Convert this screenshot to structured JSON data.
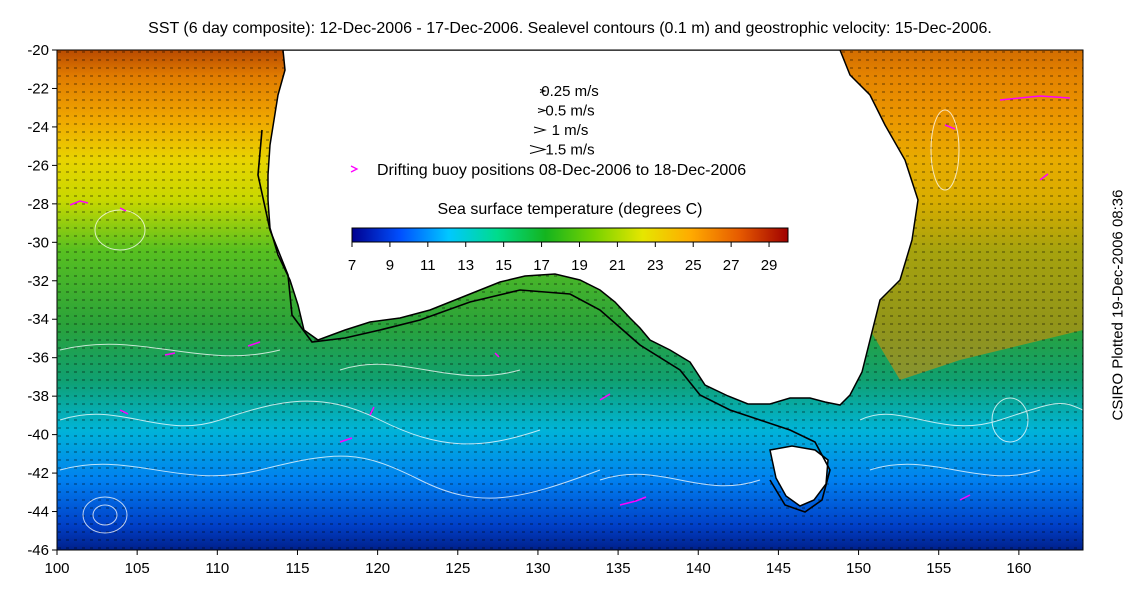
{
  "title": "SST (6 day composite): 12-Dec-2006 - 17-Dec-2006. Sealevel contours (0.1 m) and geostrophic velocity: 15-Dec-2006.",
  "side_note": "CSIRO Plotted 19-Dec-2006 08:36",
  "axes": {
    "x_range": [
      100,
      164
    ],
    "y_range": [
      -46,
      -20
    ],
    "x_ticks": [
      "100",
      "105",
      "110",
      "115",
      "120",
      "125",
      "130",
      "135",
      "140",
      "145",
      "150",
      "155",
      "160"
    ],
    "y_ticks": [
      "-20",
      "-22",
      "-24",
      "-26",
      "-28",
      "-30",
      "-32",
      "-34",
      "-36",
      "-38",
      "-40",
      "-42",
      "-44",
      "-46"
    ]
  },
  "velocity_legend": [
    {
      "label": "0.25 m/s",
      "speed": 0.25
    },
    {
      "label": "0.5 m/s",
      "speed": 0.5
    },
    {
      "label": "1 m/s",
      "speed": 1
    },
    {
      "label": "1.5 m/s",
      "speed": 1.5
    }
  ],
  "buoy_legend": {
    "label": "Drifting buoy positions 08-Dec-2006 to 18-Dec-2006",
    "color": "#ff00ff"
  },
  "colorbar": {
    "title": "Sea surface temperature (degrees C)",
    "range": [
      7,
      30
    ],
    "tick_labels": [
      "7",
      "9",
      "11",
      "13",
      "15",
      "17",
      "19",
      "21",
      "23",
      "25",
      "27",
      "29"
    ],
    "colors": [
      "#00008f",
      "#0050ff",
      "#00c8ff",
      "#00dc8c",
      "#14b41e",
      "#78d200",
      "#e6e600",
      "#ffaa00",
      "#e65a00",
      "#a00000"
    ]
  },
  "colors": {
    "land": "#ffffff",
    "coast": "#000000",
    "contour": "#ffffff",
    "shelf_fill": "#2aa23a"
  }
}
